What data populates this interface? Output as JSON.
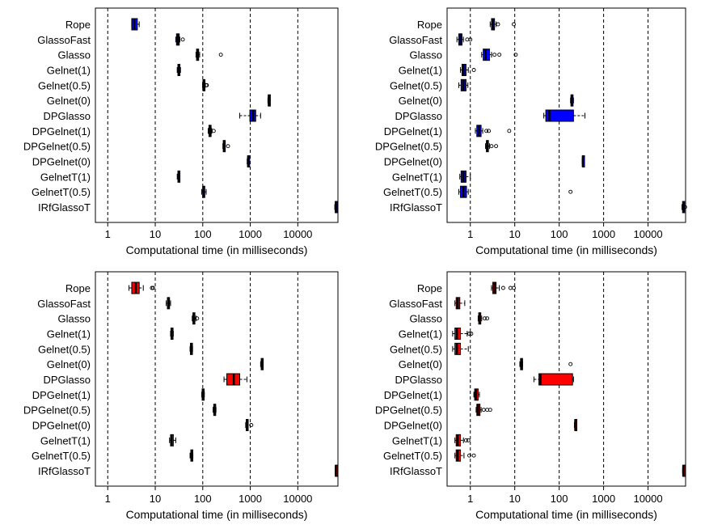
{
  "figure": {
    "description_free": true,
    "colors": {
      "panel_top": "#0000ff",
      "panel_bottom": "#ff0000",
      "outline": "#000000",
      "gridline": "#000000"
    }
  },
  "chart_data": [
    {
      "type": "boxplot",
      "orientation": "horizontal",
      "panel": "top-left",
      "fill": "#0000ff",
      "xlabel": "Computational time (in milliseconds)",
      "xscale": "log10",
      "xlim": [
        0.55,
        70000
      ],
      "xticks": [
        1,
        10,
        100,
        1000,
        10000
      ],
      "xtick_labels": [
        "1",
        "10",
        "100",
        "1000",
        "10000"
      ],
      "gridlines_x": [
        1,
        10,
        100,
        1000,
        10000
      ],
      "categories": [
        "Rope",
        "GlassoFast",
        "Glasso",
        "Gelnet(1)",
        "Gelnet(0.5)",
        "Gelnet(0)",
        "DPGlasso",
        "DPGelnet(1)",
        "DPGelnet(0.5)",
        "DPGelnet(0)",
        "GelnetT(1)",
        "GelnetT(0.5)",
        "IRfGlassoT"
      ],
      "boxes": [
        {
          "wlo": 3.2,
          "q1": 3.2,
          "med": 3.6,
          "q3": 4.2,
          "whi": 4.6,
          "out": []
        },
        {
          "wlo": 27,
          "q1": 28,
          "med": 30,
          "q3": 32,
          "whi": 33,
          "out": [
            38
          ]
        },
        {
          "wlo": 72,
          "q1": 74,
          "med": 78,
          "q3": 82,
          "whi": 86,
          "out": [
            240
          ]
        },
        {
          "wlo": 29,
          "q1": 30,
          "med": 31,
          "q3": 33,
          "whi": 34,
          "out": []
        },
        {
          "wlo": 99,
          "q1": 101,
          "med": 104,
          "q3": 108,
          "whi": 112,
          "out": [
            118,
            122
          ]
        },
        {
          "wlo": 2350,
          "q1": 2400,
          "med": 2450,
          "q3": 2550,
          "whi": 2600,
          "out": []
        },
        {
          "wlo": 600,
          "q1": 980,
          "med": 1150,
          "q3": 1300,
          "whi": 1650,
          "out": []
        },
        {
          "wlo": 130,
          "q1": 135,
          "med": 142,
          "q3": 150,
          "whi": 155,
          "out": [
            170
          ]
        },
        {
          "wlo": 265,
          "q1": 270,
          "med": 280,
          "q3": 290,
          "whi": 295,
          "out": [
            340
          ]
        },
        {
          "wlo": 860,
          "q1": 880,
          "med": 900,
          "q3": 940,
          "whi": 970,
          "out": []
        },
        {
          "wlo": 29,
          "q1": 30,
          "med": 31,
          "q3": 32,
          "whi": 33,
          "out": []
        },
        {
          "wlo": 95,
          "q1": 100,
          "med": 103,
          "q3": 108,
          "whi": 118,
          "out": []
        },
        {
          "wlo": 60000,
          "q1": 61500,
          "med": 63000,
          "q3": 64500,
          "whi": 66000,
          "out": []
        }
      ]
    },
    {
      "type": "boxplot",
      "orientation": "horizontal",
      "panel": "top-right",
      "fill": "#0000ff",
      "xlabel": "Computational time (in milliseconds)",
      "xscale": "log10",
      "xlim": [
        0.3,
        70000
      ],
      "xticks": [
        1,
        10,
        100,
        1000,
        10000
      ],
      "xtick_labels": [
        "1",
        "10",
        "100",
        "1000",
        "10000"
      ],
      "gridlines_x": [
        1,
        10,
        100,
        1000,
        10000
      ],
      "categories": [
        "Rope",
        "GlassoFast",
        "Glasso",
        "Gelnet(1)",
        "Gelnet(0.5)",
        "Gelnet(0)",
        "DPGlasso",
        "DPGelnet(1)",
        "DPGelnet(0.5)",
        "DPGelnet(0)",
        "GelnetT(1)",
        "GelnetT(0.5)",
        "IRfGlassoT"
      ],
      "boxes": [
        {
          "wlo": 2.8,
          "q1": 3.0,
          "med": 3.2,
          "q3": 3.5,
          "whi": 3.8,
          "out": [
            4.2,
            9.5
          ]
        },
        {
          "wlo": 0.5,
          "q1": 0.55,
          "med": 0.6,
          "q3": 0.65,
          "whi": 0.7,
          "out": [
            0.85,
            1.0
          ]
        },
        {
          "wlo": 1.8,
          "q1": 1.95,
          "med": 2.2,
          "q3": 2.7,
          "whi": 3.0,
          "out": [
            3.5,
            4.5,
            10.5
          ]
        },
        {
          "wlo": 0.6,
          "q1": 0.65,
          "med": 0.7,
          "q3": 0.8,
          "whi": 0.9,
          "out": [
            1.2
          ]
        },
        {
          "wlo": 0.55,
          "q1": 0.62,
          "med": 0.7,
          "q3": 0.8,
          "whi": 0.88,
          "out": []
        },
        {
          "wlo": 180,
          "q1": 185,
          "med": 190,
          "q3": 200,
          "whi": 210,
          "out": []
        },
        {
          "wlo": 45,
          "q1": 50,
          "med": 60,
          "q3": 210,
          "whi": 380,
          "out": []
        },
        {
          "wlo": 1.3,
          "q1": 1.4,
          "med": 1.55,
          "q3": 1.75,
          "whi": 1.9,
          "out": [
            2.3,
            2.6,
            7.5
          ]
        },
        {
          "wlo": 2.2,
          "q1": 2.3,
          "med": 2.4,
          "q3": 2.55,
          "whi": 2.7,
          "out": [
            3.0,
            3.8
          ]
        },
        {
          "wlo": 330,
          "q1": 335,
          "med": 340,
          "q3": 345,
          "whi": 350,
          "out": []
        },
        {
          "wlo": 0.58,
          "q1": 0.62,
          "med": 0.7,
          "q3": 0.8,
          "whi": 1.0,
          "out": []
        },
        {
          "wlo": 0.55,
          "q1": 0.6,
          "med": 0.7,
          "q3": 0.82,
          "whi": 0.9,
          "out": [
            180
          ]
        },
        {
          "wlo": 58000,
          "q1": 60000,
          "med": 62000,
          "q3": 64000,
          "whi": 66000,
          "out": [
            68000
          ]
        }
      ]
    },
    {
      "type": "boxplot",
      "orientation": "horizontal",
      "panel": "bottom-left",
      "fill": "#ff0000",
      "xlabel": "Computational time (in milliseconds)",
      "xscale": "log10",
      "xlim": [
        0.55,
        70000
      ],
      "xticks": [
        1,
        10,
        100,
        1000,
        10000
      ],
      "xtick_labels": [
        "1",
        "10",
        "100",
        "1000",
        "10000"
      ],
      "gridlines_x": [
        1,
        10,
        100,
        1000,
        10000
      ],
      "categories": [
        "Rope",
        "GlassoFast",
        "Glasso",
        "Gelnet(1)",
        "Gelnet(0.5)",
        "Gelnet(0)",
        "DPGlasso",
        "DPGelnet(1)",
        "DPGelnet(0.5)",
        "DPGelnet(0)",
        "GelnetT(1)",
        "GelnetT(0.5)",
        "IRfGlassoT"
      ],
      "boxes": [
        {
          "wlo": 2.8,
          "q1": 3.2,
          "med": 3.9,
          "q3": 4.6,
          "whi": 5.6,
          "out": [
            8.5,
            9.0
          ]
        },
        {
          "wlo": 17,
          "q1": 18,
          "med": 19,
          "q3": 20,
          "whi": 21,
          "out": []
        },
        {
          "wlo": 60,
          "q1": 62,
          "med": 65,
          "q3": 68,
          "whi": 72,
          "out": [
            76
          ]
        },
        {
          "wlo": 21,
          "q1": 21.5,
          "med": 22,
          "q3": 23,
          "whi": 24,
          "out": []
        },
        {
          "wlo": 54,
          "q1": 55,
          "med": 57,
          "q3": 59,
          "whi": 61,
          "out": []
        },
        {
          "wlo": 1650,
          "q1": 1700,
          "med": 1750,
          "q3": 1800,
          "whi": 1850,
          "out": []
        },
        {
          "wlo": 280,
          "q1": 320,
          "med": 450,
          "q3": 600,
          "whi": 850,
          "out": []
        },
        {
          "wlo": 95,
          "q1": 97,
          "med": 100,
          "q3": 104,
          "whi": 108,
          "out": []
        },
        {
          "wlo": 165,
          "q1": 170,
          "med": 178,
          "q3": 185,
          "whi": 190,
          "out": []
        },
        {
          "wlo": 800,
          "q1": 820,
          "med": 850,
          "q3": 880,
          "whi": 900,
          "out": [
            1050
          ]
        },
        {
          "wlo": 20,
          "q1": 21,
          "med": 22,
          "q3": 24,
          "whi": 27,
          "out": []
        },
        {
          "wlo": 54,
          "q1": 56,
          "med": 58,
          "q3": 61,
          "whi": 62,
          "out": []
        },
        {
          "wlo": 61000,
          "q1": 62000,
          "med": 63000,
          "q3": 64000,
          "whi": 65000,
          "out": []
        }
      ]
    },
    {
      "type": "boxplot",
      "orientation": "horizontal",
      "panel": "bottom-right",
      "fill": "#ff0000",
      "xlabel": "Computational time (in milliseconds)",
      "xscale": "log10",
      "xlim": [
        0.3,
        70000
      ],
      "xticks": [
        1,
        10,
        100,
        1000,
        10000
      ],
      "xtick_labels": [
        "1",
        "10",
        "100",
        "1000",
        "10000"
      ],
      "gridlines_x": [
        1,
        10,
        100,
        1000,
        10000
      ],
      "categories": [
        "Rope",
        "GlassoFast",
        "Glasso",
        "Gelnet(1)",
        "Gelnet(0.5)",
        "Gelnet(0)",
        "DPGlasso",
        "DPGelnet(1)",
        "DPGelnet(0.5)",
        "DPGelnet(0)",
        "GelnetT(1)",
        "GelnetT(0.5)",
        "IRfGlassoT"
      ],
      "boxes": [
        {
          "wlo": 3.0,
          "q1": 3.2,
          "med": 3.5,
          "q3": 3.8,
          "whi": 4.5,
          "out": [
            5.5,
            8.0,
            9.5
          ]
        },
        {
          "wlo": 0.45,
          "q1": 0.48,
          "med": 0.52,
          "q3": 0.58,
          "whi": 0.75,
          "out": []
        },
        {
          "wlo": 1.5,
          "q1": 1.55,
          "med": 1.6,
          "q3": 1.7,
          "whi": 1.8,
          "out": [
            2.1,
            2.4
          ]
        },
        {
          "wlo": 0.4,
          "q1": 0.45,
          "med": 0.5,
          "q3": 0.6,
          "whi": 0.85,
          "out": [
            0.95,
            1.05
          ]
        },
        {
          "wlo": 0.4,
          "q1": 0.45,
          "med": 0.5,
          "q3": 0.6,
          "whi": 0.9,
          "out": []
        },
        {
          "wlo": 13,
          "q1": 13.5,
          "med": 14,
          "q3": 14.5,
          "whi": 15,
          "out": [
            180
          ]
        },
        {
          "wlo": 27,
          "q1": 35,
          "med": 38,
          "q3": 200,
          "whi": 210,
          "out": []
        },
        {
          "wlo": 1.2,
          "q1": 1.25,
          "med": 1.35,
          "q3": 1.5,
          "whi": 1.6,
          "out": []
        },
        {
          "wlo": 1.35,
          "q1": 1.4,
          "med": 1.5,
          "q3": 1.65,
          "whi": 1.75,
          "out": [
            2.0,
            2.4,
            2.8
          ]
        },
        {
          "wlo": 220,
          "q1": 225,
          "med": 230,
          "q3": 240,
          "whi": 250,
          "out": []
        },
        {
          "wlo": 0.45,
          "q1": 0.48,
          "med": 0.52,
          "q3": 0.6,
          "whi": 0.7,
          "out": [
            0.8,
            0.9
          ]
        },
        {
          "wlo": 0.45,
          "q1": 0.48,
          "med": 0.52,
          "q3": 0.6,
          "whi": 0.72,
          "out": [
            0.95,
            1.2
          ]
        },
        {
          "wlo": 60000,
          "q1": 61000,
          "med": 62000,
          "q3": 63500,
          "whi": 65000,
          "out": []
        }
      ]
    }
  ]
}
